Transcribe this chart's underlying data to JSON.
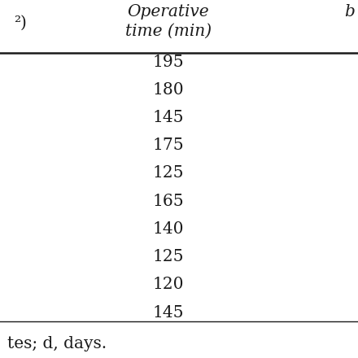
{
  "header_line1": "Operative",
  "header_line2": "time (min)",
  "header_left": "²)",
  "header_right": "b",
  "values": [
    "195",
    "180",
    "145",
    "175",
    "125",
    "165",
    "140",
    "125",
    "120",
    "145"
  ],
  "footer": "tes; d, days.",
  "bg_color": "#ffffff",
  "text_color": "#1a1a1a",
  "font_size": 14.5,
  "header_font_size": 14.5,
  "figsize": [
    4.4,
    4.4
  ],
  "dpi": 100
}
